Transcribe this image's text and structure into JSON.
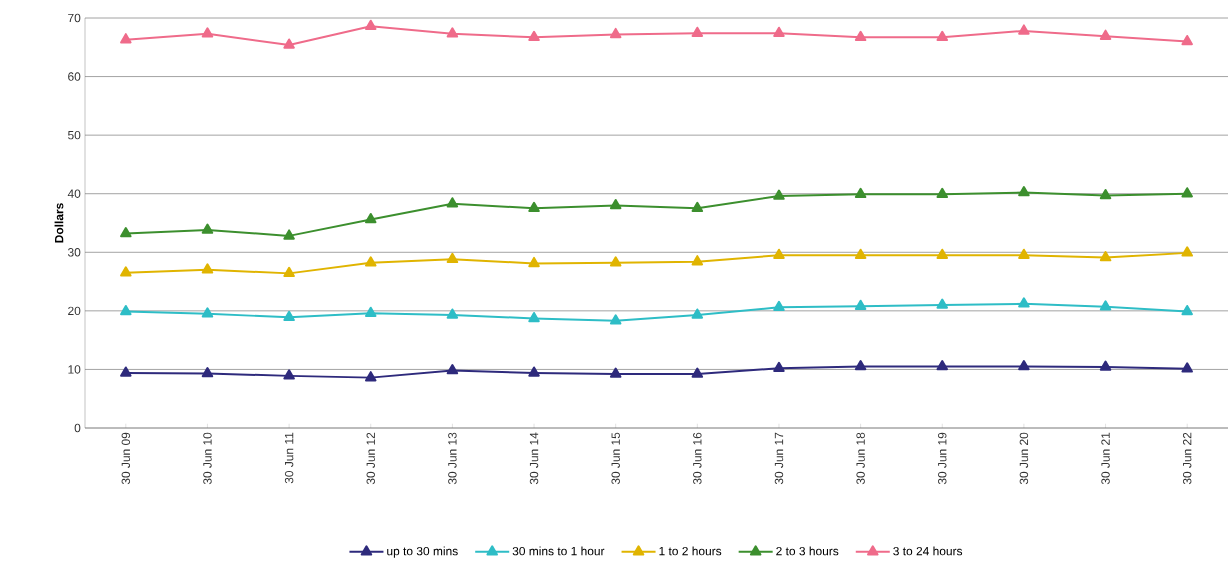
{
  "chart_data": {
    "type": "line",
    "ylabel": "Dollars",
    "categories": [
      "30 Jun 09",
      "30 Jun 10",
      "30 Jun 11",
      "30 Jun 12",
      "30 Jun 13",
      "30 Jun 14",
      "30 Jun 15",
      "30 Jun 16",
      "30 Jun 17",
      "30 Jun 18",
      "30 Jun 19",
      "30 Jun 20",
      "30 Jun 21",
      "30 Jun 22"
    ],
    "series": [
      {
        "name": "up to 30 mins",
        "color": "#2e2a7c",
        "values": [
          9.4,
          9.3,
          8.9,
          8.6,
          9.8,
          9.4,
          9.2,
          9.2,
          10.2,
          10.5,
          10.5,
          10.5,
          10.4,
          10.1
        ]
      },
      {
        "name": "30 mins to 1 hour",
        "color": "#2ebdc6",
        "values": [
          19.9,
          19.5,
          18.9,
          19.6,
          19.3,
          18.7,
          18.3,
          19.3,
          20.6,
          20.8,
          21.0,
          21.2,
          20.7,
          19.9
        ]
      },
      {
        "name": "1 to 2 hours",
        "color": "#e0b400",
        "values": [
          26.5,
          27.0,
          26.4,
          28.2,
          28.8,
          28.1,
          28.2,
          28.4,
          29.5,
          29.5,
          29.5,
          29.5,
          29.1,
          29.9
        ]
      },
      {
        "name": "2 to 3 hours",
        "color": "#3c8f2e",
        "values": [
          33.2,
          33.8,
          32.8,
          35.6,
          38.3,
          37.5,
          38.0,
          37.5,
          39.6,
          39.9,
          39.9,
          40.2,
          39.7,
          40.0
        ]
      },
      {
        "name": "3 to 24 hours",
        "color": "#ef6b8a",
        "values": [
          66.3,
          67.3,
          65.4,
          68.6,
          67.3,
          66.7,
          67.2,
          67.4,
          67.4,
          66.7,
          66.7,
          67.8,
          66.9,
          66.0
        ]
      }
    ],
    "ylim": [
      0,
      70
    ],
    "yticks": [
      0,
      10,
      20,
      30,
      40,
      50,
      60,
      70
    ],
    "grid": "y",
    "legend": "bottom",
    "marker": "triangle",
    "line_style": "solid"
  }
}
